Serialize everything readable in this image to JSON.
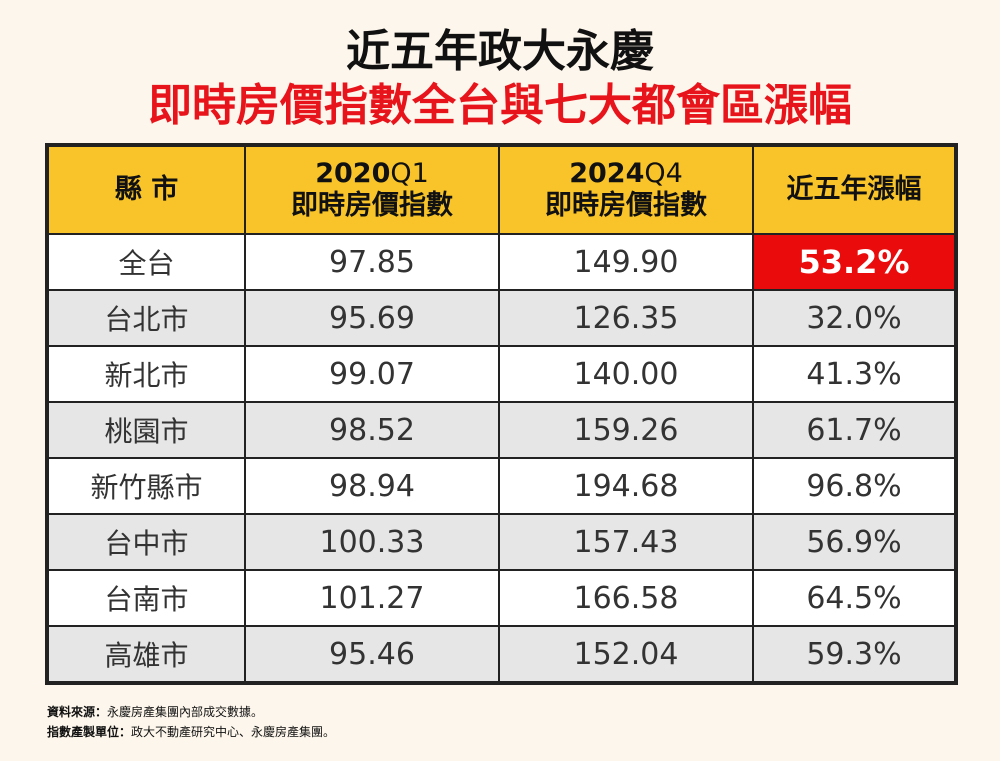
{
  "title": {
    "line1": "近五年政大永慶",
    "line2": "即時房價指數全台與七大都會區漲幅"
  },
  "table": {
    "headers": {
      "county": "縣 市",
      "col2_year": "2020",
      "col2_quarter": "Q1",
      "col2_sub": "即時房價指數",
      "col3_year": "2024",
      "col3_quarter": "Q4",
      "col3_sub": "即時房價指數",
      "col4": "近五年漲幅"
    },
    "rows": [
      {
        "name": "全台",
        "v2020": "97.85",
        "v2024": "149.90",
        "growth": "53.2%"
      },
      {
        "name": "台北市",
        "v2020": "95.69",
        "v2024": "126.35",
        "growth": "32.0%"
      },
      {
        "name": "新北市",
        "v2020": "99.07",
        "v2024": "140.00",
        "growth": "41.3%"
      },
      {
        "name": "桃園市",
        "v2020": "98.52",
        "v2024": "159.26",
        "growth": "61.7%"
      },
      {
        "name": "新竹縣市",
        "v2020": "98.94",
        "v2024": "194.68",
        "growth": "96.8%"
      },
      {
        "name": "台中市",
        "v2020": "100.33",
        "v2024": "157.43",
        "growth": "56.9%"
      },
      {
        "name": "台南市",
        "v2020": "101.27",
        "v2024": "166.58",
        "growth": "64.5%"
      },
      {
        "name": "高雄市",
        "v2020": "95.46",
        "v2024": "152.04",
        "growth": "59.3%"
      }
    ]
  },
  "footer": {
    "source_label": "資料來源：",
    "source_text": "永慶房產集團內部成交數據。",
    "maker_label": "指數產製單位：",
    "maker_text": "政大不動產研究中心、永慶房產集團。"
  },
  "colors": {
    "background": "#fdf6ec",
    "header": "#f8c42a",
    "highlight": "#ea0c0c",
    "title_red": "#e8141b"
  }
}
